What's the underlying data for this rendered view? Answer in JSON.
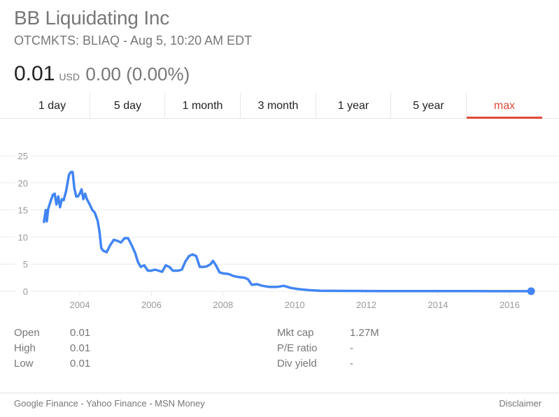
{
  "header": {
    "company_name": "BB Liquidating Inc",
    "exchange_line": "OTCMKTS: BLIAQ - Aug 5, 10:20 AM EDT",
    "price": "0.01",
    "currency": "USD",
    "change": "0.00 (0.00%)"
  },
  "tabs": [
    {
      "label": "1 day",
      "active": false
    },
    {
      "label": "5 day",
      "active": false
    },
    {
      "label": "1 month",
      "active": false
    },
    {
      "label": "3 month",
      "active": false
    },
    {
      "label": "1 year",
      "active": false
    },
    {
      "label": "5 year",
      "active": false
    },
    {
      "label": "max",
      "active": true
    }
  ],
  "colors": {
    "line": "#4285f4",
    "active_tab": "#dd4b39",
    "grid": "#ebebeb",
    "axis_text": "#999999"
  },
  "stats": {
    "left": [
      {
        "label": "Open",
        "value": "0.01"
      },
      {
        "label": "High",
        "value": "0.01"
      },
      {
        "label": "Low",
        "value": "0.01"
      }
    ],
    "right": [
      {
        "label": "Mkt cap",
        "value": "1.27M"
      },
      {
        "label": "P/E ratio",
        "value": "-"
      },
      {
        "label": "Div yield",
        "value": "-"
      }
    ]
  },
  "footer": {
    "sources": [
      "Google Finance",
      "Yahoo Finance",
      "MSN Money"
    ],
    "separator": " - ",
    "disclaimer": "Disclaimer"
  },
  "chart_data": {
    "type": "line",
    "title": "",
    "xlabel": "",
    "ylabel": "",
    "ylim": [
      0,
      25
    ],
    "xlim": [
      2003.0,
      2016.7
    ],
    "yticks": [
      0,
      5,
      10,
      15,
      20,
      25
    ],
    "xticks": [
      "2004",
      "2006",
      "2008",
      "2010",
      "2012",
      "2014",
      "2016"
    ],
    "grid": true,
    "legend": null,
    "series": [
      {
        "name": "BLIAQ",
        "x": [
          2003.0,
          2003.05,
          2003.08,
          2003.12,
          2003.18,
          2003.25,
          2003.3,
          2003.35,
          2003.4,
          2003.45,
          2003.5,
          2003.55,
          2003.62,
          2003.7,
          2003.75,
          2003.8,
          2003.85,
          2003.9,
          2003.95,
          2004.0,
          2004.05,
          2004.1,
          2004.15,
          2004.2,
          2004.28,
          2004.35,
          2004.42,
          2004.5,
          2004.55,
          2004.6,
          2004.65,
          2004.75,
          2004.85,
          2004.95,
          2005.05,
          2005.15,
          2005.25,
          2005.35,
          2005.45,
          2005.55,
          2005.62,
          2005.7,
          2005.8,
          2005.9,
          2006.0,
          2006.1,
          2006.2,
          2006.3,
          2006.4,
          2006.5,
          2006.6,
          2006.75,
          2006.85,
          2006.95,
          2007.05,
          2007.15,
          2007.25,
          2007.35,
          2007.45,
          2007.55,
          2007.65,
          2007.72,
          2007.8,
          2007.9,
          2008.0,
          2008.15,
          2008.3,
          2008.45,
          2008.6,
          2008.7,
          2008.8,
          2008.95,
          2009.1,
          2009.3,
          2009.5,
          2009.7,
          2009.9,
          2010.1,
          2010.4,
          2010.7,
          2011.0,
          2011.5,
          2012.0,
          2012.5,
          2013.0,
          2013.5,
          2014.0,
          2014.5,
          2015.0,
          2015.5,
          2016.0,
          2016.6
        ],
        "values": [
          12.8,
          15.0,
          12.9,
          15.2,
          16.5,
          17.8,
          18.0,
          16.0,
          17.5,
          15.5,
          17.0,
          16.8,
          18.5,
          21.5,
          22.0,
          22.0,
          19.0,
          17.5,
          17.5,
          18.0,
          18.8,
          17.0,
          18.0,
          17.0,
          16.0,
          15.0,
          14.5,
          13.0,
          11.0,
          8.0,
          7.5,
          7.2,
          8.5,
          9.5,
          9.3,
          9.0,
          9.8,
          9.8,
          8.5,
          7.0,
          5.5,
          4.5,
          4.8,
          3.8,
          3.8,
          4.0,
          3.8,
          3.6,
          4.8,
          4.5,
          3.8,
          3.8,
          4.0,
          5.5,
          6.5,
          6.8,
          6.5,
          4.5,
          4.5,
          4.6,
          5.0,
          5.6,
          4.8,
          3.5,
          3.3,
          3.2,
          2.8,
          2.6,
          2.5,
          2.2,
          1.2,
          1.3,
          1.0,
          0.8,
          0.8,
          1.0,
          0.6,
          0.4,
          0.2,
          0.1,
          0.08,
          0.06,
          0.05,
          0.04,
          0.03,
          0.03,
          0.02,
          0.02,
          0.02,
          0.01,
          0.01,
          0.01
        ]
      }
    ],
    "annotations": [
      {
        "type": "endpoint-dot",
        "x": 2016.6,
        "value": 0.01
      }
    ]
  }
}
